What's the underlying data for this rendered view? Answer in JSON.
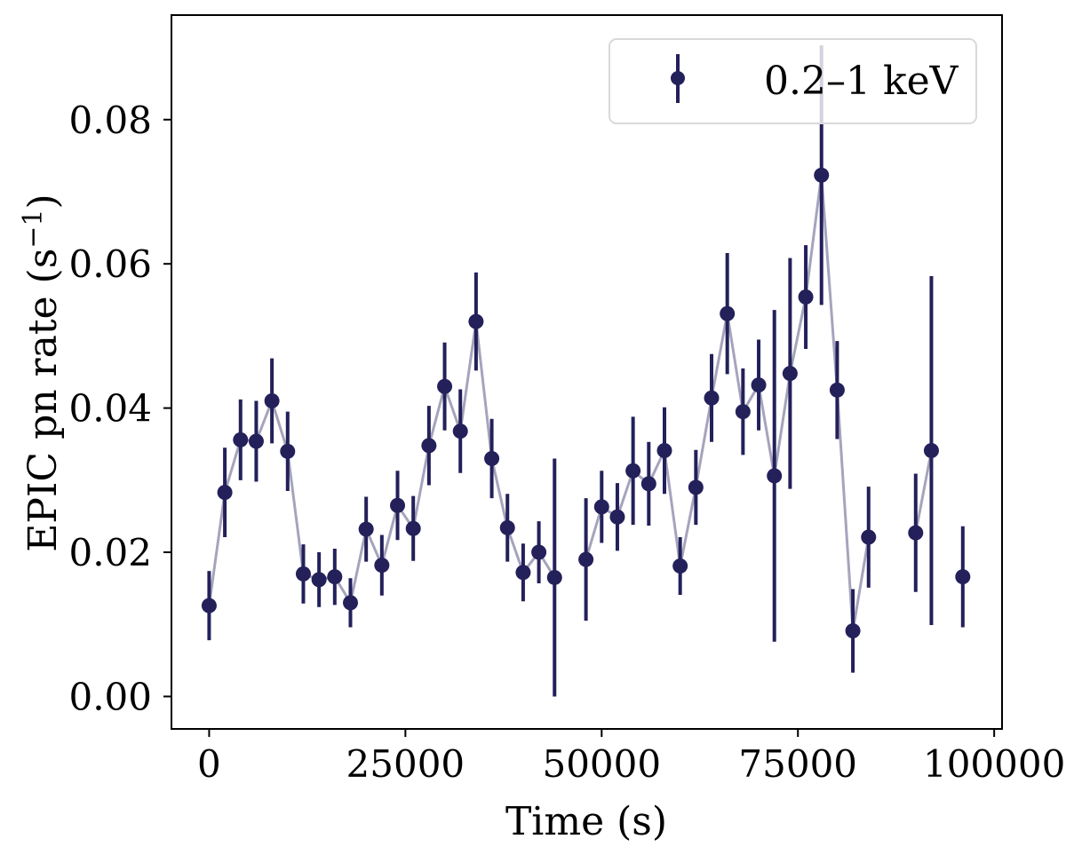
{
  "chart_data": {
    "type": "scatter",
    "title": "",
    "xlabel": "Time (s)",
    "ylabel": "EPIC pn rate (s",
    "ylabel_sup": "−1",
    "ylabel_close": ")",
    "xlim": [
      -4800,
      101000
    ],
    "ylim": [
      -0.0045,
      0.0945
    ],
    "xticks": [
      0,
      25000,
      50000,
      75000,
      100000
    ],
    "xtick_labels": [
      "0",
      "25000",
      "50000",
      "75000",
      "100000"
    ],
    "yticks": [
      0.0,
      0.02,
      0.04,
      0.06,
      0.08
    ],
    "ytick_labels": [
      "0.00",
      "0.02",
      "0.04",
      "0.06",
      "0.08"
    ],
    "grid": false,
    "legend_position": "top-right",
    "marker_color": "#23205a",
    "line_color": "#a6a4bc",
    "series": [
      {
        "name": "0.2–1 keV",
        "segments": [
          [
            {
              "x": 0,
              "y": 0.0126,
              "err": 0.0048
            },
            {
              "x": 2000,
              "y": 0.0283,
              "err": 0.0062
            },
            {
              "x": 4000,
              "y": 0.0356,
              "err": 0.0056
            },
            {
              "x": 6000,
              "y": 0.0354,
              "err": 0.0056
            },
            {
              "x": 8000,
              "y": 0.041,
              "err": 0.0059
            },
            {
              "x": 10000,
              "y": 0.034,
              "err": 0.0055
            },
            {
              "x": 12000,
              "y": 0.017,
              "err": 0.0041
            },
            {
              "x": 14000,
              "y": 0.0162,
              "err": 0.0038
            },
            {
              "x": 16000,
              "y": 0.0166,
              "err": 0.0039
            },
            {
              "x": 18000,
              "y": 0.013,
              "err": 0.0034
            },
            {
              "x": 20000,
              "y": 0.0232,
              "err": 0.0045
            },
            {
              "x": 22000,
              "y": 0.0182,
              "err": 0.0042
            },
            {
              "x": 24000,
              "y": 0.0265,
              "err": 0.0048
            },
            {
              "x": 26000,
              "y": 0.0233,
              "err": 0.0045
            },
            {
              "x": 28000,
              "y": 0.0348,
              "err": 0.0055
            },
            {
              "x": 30000,
              "y": 0.043,
              "err": 0.0061
            },
            {
              "x": 32000,
              "y": 0.0368,
              "err": 0.0058
            },
            {
              "x": 34000,
              "y": 0.052,
              "err": 0.0068
            },
            {
              "x": 36000,
              "y": 0.033,
              "err": 0.0055
            },
            {
              "x": 38000,
              "y": 0.0234,
              "err": 0.0047
            },
            {
              "x": 40000,
              "y": 0.0172,
              "err": 0.004
            },
            {
              "x": 42000,
              "y": 0.02,
              "err": 0.0043
            },
            {
              "x": 44000,
              "y": 0.0165,
              "err": 0.0165
            }
          ],
          [
            {
              "x": 48000,
              "y": 0.019,
              "err": 0.0085
            },
            {
              "x": 50000,
              "y": 0.0263,
              "err": 0.005
            },
            {
              "x": 52000,
              "y": 0.0249,
              "err": 0.0047
            },
            {
              "x": 54000,
              "y": 0.0313,
              "err": 0.0075
            },
            {
              "x": 56000,
              "y": 0.0295,
              "err": 0.0058
            },
            {
              "x": 58000,
              "y": 0.0341,
              "err": 0.006
            },
            {
              "x": 60000,
              "y": 0.0181,
              "err": 0.004
            },
            {
              "x": 62000,
              "y": 0.029,
              "err": 0.0052
            },
            {
              "x": 64000,
              "y": 0.0414,
              "err": 0.0061
            },
            {
              "x": 66000,
              "y": 0.0531,
              "err": 0.0084
            },
            {
              "x": 68000,
              "y": 0.0395,
              "err": 0.006
            },
            {
              "x": 70000,
              "y": 0.0432,
              "err": 0.0063
            },
            {
              "x": 72000,
              "y": 0.0306,
              "err": 0.023
            },
            {
              "x": 74000,
              "y": 0.0448,
              "err": 0.016
            },
            {
              "x": 76000,
              "y": 0.0554,
              "err": 0.0072
            },
            {
              "x": 78000,
              "y": 0.0723,
              "err": 0.018
            },
            {
              "x": 80000,
              "y": 0.0425,
              "err": 0.0068
            },
            {
              "x": 82000,
              "y": 0.0091,
              "err": 0.0058
            },
            {
              "x": 84000,
              "y": 0.0221,
              "err": 0.007
            }
          ],
          [
            {
              "x": 90000,
              "y": 0.0227,
              "err": 0.0082
            },
            {
              "x": 92000,
              "y": 0.0341,
              "err": 0.0242
            }
          ],
          [
            {
              "x": 96000,
              "y": 0.0166,
              "err": 0.007
            }
          ]
        ]
      }
    ]
  }
}
